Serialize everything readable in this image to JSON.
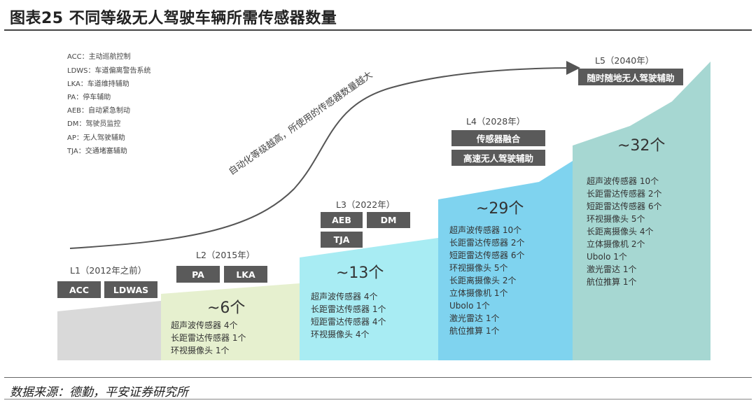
{
  "header": {
    "title": "图表25    不同等级无人驾驶车辆所需传感器数量"
  },
  "source": "数据来源：德勤，平安证券研究所",
  "abbreviations": [
    "ACC：主动巡航控制",
    "LDWS：车道偏离警告系统",
    "LKA：车道维持辅助",
    "PA：停车辅助",
    "AEB：自动紧急制动",
    "DM：驾驶员监控",
    "AP：无人驾驶辅助",
    "TJA：交通堵塞辅助"
  ],
  "trend_label": "自动化等级越高，所使用的传感器数量越大",
  "colors": {
    "l1": "#d9d9d9",
    "l2": "#e6f0cf",
    "l3": "#a8ecf3",
    "l4": "#7fd3ef",
    "l5": "#a6d7d2",
    "tag": "#5a5a5a",
    "curve": "#555555"
  },
  "chart_data": {
    "type": "area",
    "title": "不同等级无人驾驶车辆所需传感器数量",
    "levels": [
      {
        "level": "L1（2012年之前）",
        "tags": [
          "ACC",
          "LDWAS"
        ],
        "count_label": "",
        "total": null,
        "sensors": []
      },
      {
        "level": "L2（2015年）",
        "tags": [
          "PA",
          "LKA"
        ],
        "count_label": "~6个",
        "total": 6,
        "sensors": [
          "超声波传感器  4个",
          "长距雷达传感器  1个",
          "环视摄像头  1个"
        ]
      },
      {
        "level": "L3（2022年）",
        "tags": [
          "AEB",
          "DM",
          "TJA"
        ],
        "count_label": "~13个",
        "total": 13,
        "sensors": [
          "超声波传感器  4个",
          "长距雷达传感器  1个",
          "短距雷达传感器  4个",
          "环视摄像头  4个"
        ]
      },
      {
        "level": "L4（2028年）",
        "tags": [
          "传感器融合",
          "高速无人驾驶辅助"
        ],
        "count_label": "~29个",
        "total": 29,
        "sensors": [
          "超声波传感器  10个",
          "长距雷达传感器  2个",
          "短距雷达传感器  6个",
          "环视摄像头  5个",
          "长距离摄像头  2个",
          "立体摄像机  1个",
          "Ubolo  1个",
          "激光雷达  1个",
          "航位推算  1个"
        ]
      },
      {
        "level": "L5（2040年）",
        "tags": [
          "随时随地无人驾驶辅助"
        ],
        "count_label": "~32个",
        "total": 32,
        "sensors": [
          "超声波传感器  10个",
          "长距雷达传感器  2个",
          "短距雷达传感器  6个",
          "环视摄像头  5个",
          "长距离摄像头  4个",
          "立体摄像机  2个",
          "Ubolo  1个",
          "激光雷达  1个",
          "航位推算  1个"
        ]
      }
    ]
  }
}
